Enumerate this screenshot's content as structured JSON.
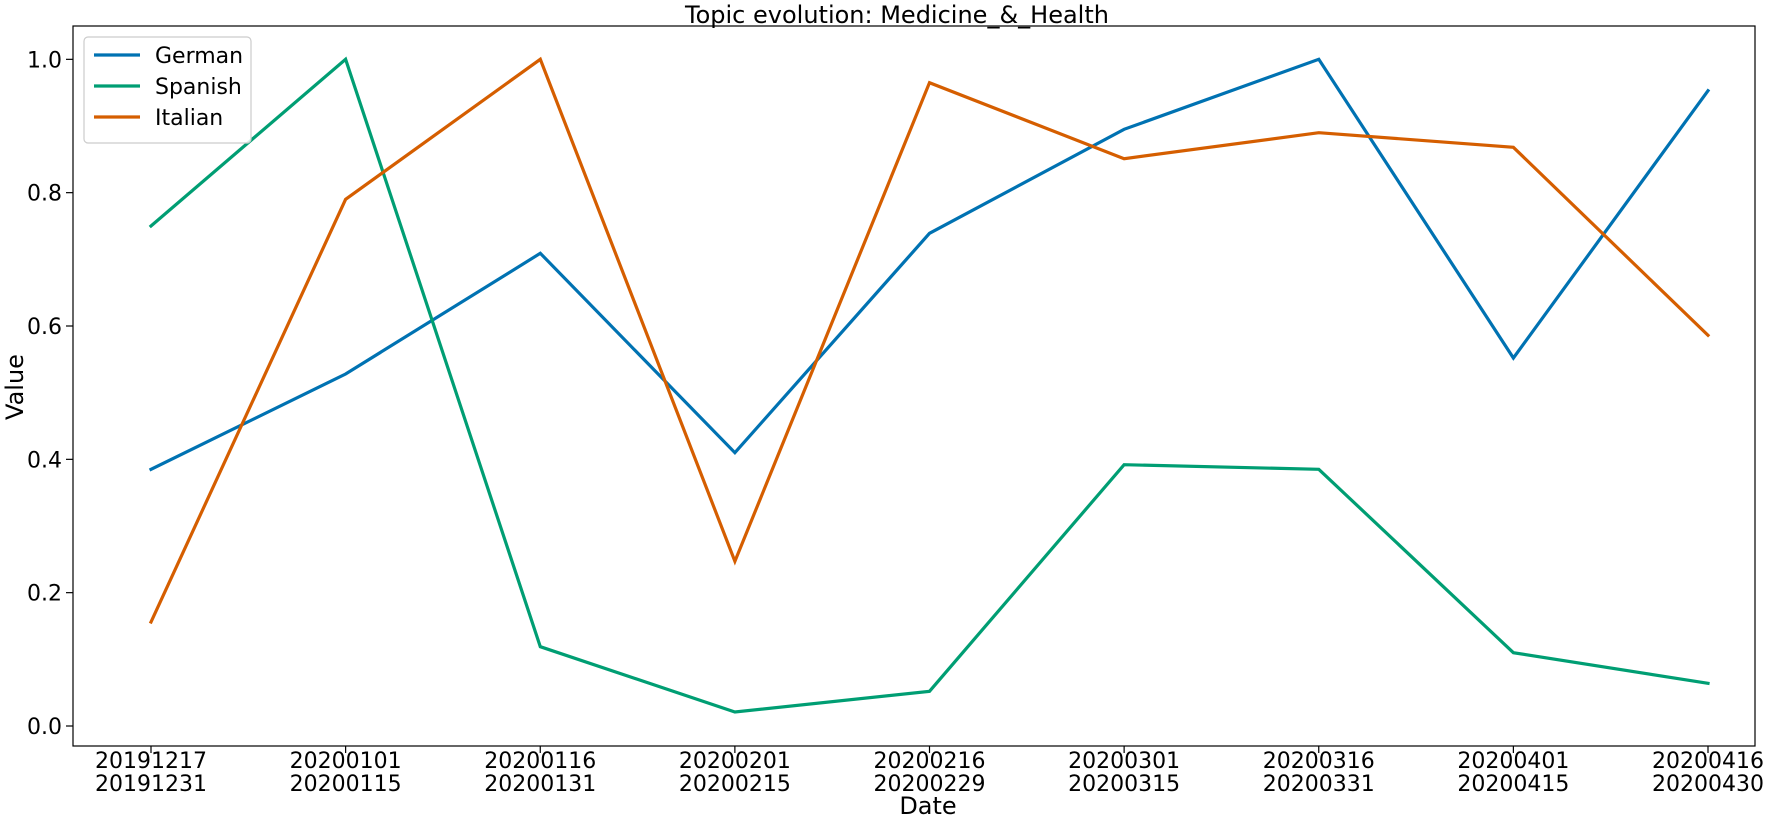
{
  "chart_data": {
    "type": "line",
    "title": "Topic evolution: Medicine_&_Health",
    "xlabel": "Date",
    "ylabel": "Value",
    "ylim": [
      -0.03,
      1.05
    ],
    "yticks": [
      "0.0",
      "0.2",
      "0.4",
      "0.6",
      "0.8",
      "1.0"
    ],
    "grid": false,
    "legend_position": "top-left",
    "categories": [
      [
        "20191217",
        "20191231"
      ],
      [
        "20200101",
        "20200115"
      ],
      [
        "20200116",
        "20200131"
      ],
      [
        "20200201",
        "20200215"
      ],
      [
        "20200216",
        "20200229"
      ],
      [
        "20200301",
        "20200315"
      ],
      [
        "20200316",
        "20200331"
      ],
      [
        "20200401",
        "20200415"
      ],
      [
        "20200416",
        "20200430"
      ]
    ],
    "series": [
      {
        "name": "German",
        "color": "#0072b2",
        "values": [
          0.385,
          0.528,
          0.709,
          0.41,
          0.739,
          0.895,
          1.0,
          0.552,
          0.953
        ]
      },
      {
        "name": "Spanish",
        "color": "#009e73",
        "values": [
          0.75,
          1.0,
          0.119,
          0.021,
          0.052,
          0.392,
          0.385,
          0.11,
          0.064
        ]
      },
      {
        "name": "Italian",
        "color": "#d55e00",
        "values": [
          0.156,
          0.79,
          1.0,
          0.247,
          0.965,
          0.851,
          0.89,
          0.868,
          0.586
        ]
      }
    ]
  }
}
